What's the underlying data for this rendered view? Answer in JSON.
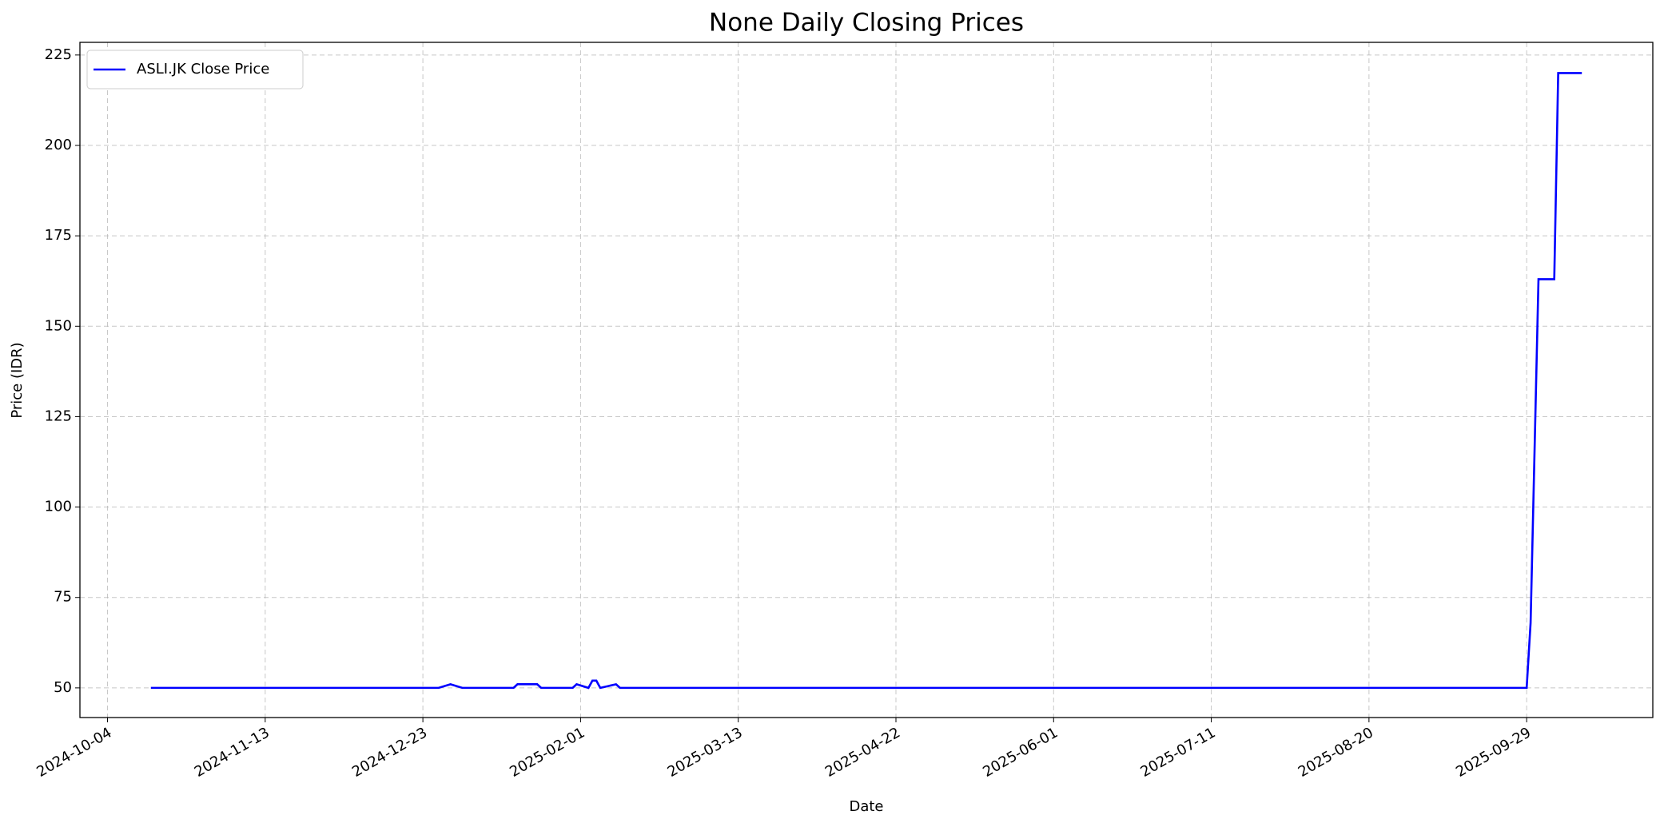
{
  "chart_data": {
    "type": "line",
    "title": "None Daily Closing Prices",
    "xlabel": "Date",
    "ylabel": "Price (IDR)",
    "x": [
      "2024-10-15",
      "2024-12-27",
      "2024-12-30",
      "2025-01-02",
      "2025-01-15",
      "2025-01-16",
      "2025-01-21",
      "2025-01-22",
      "2025-01-30",
      "2025-01-31",
      "2025-02-03",
      "2025-02-04",
      "2025-02-05",
      "2025-02-06",
      "2025-02-10",
      "2025-02-11",
      "2025-09-29",
      "2025-09-30",
      "2025-10-02",
      "2025-10-06",
      "2025-10-07",
      "2025-10-13"
    ],
    "series": [
      {
        "name": "ASLI.JK Close Price",
        "color": "#0000ff",
        "values": [
          50,
          50,
          51,
          50,
          50,
          51,
          51,
          50,
          50,
          51,
          50,
          52,
          52,
          50,
          51,
          50,
          50,
          68,
          163,
          163,
          220,
          220
        ]
      }
    ],
    "xlim": [
      "2024-09-27",
      "2025-10-31"
    ],
    "xticks": [
      "2024-10-04",
      "2024-11-13",
      "2024-12-23",
      "2025-02-01",
      "2025-03-13",
      "2025-04-22",
      "2025-06-01",
      "2025-07-11",
      "2025-08-20",
      "2025-09-29"
    ],
    "ylim": [
      41.8,
      228.5
    ],
    "yticks": [
      50,
      75,
      100,
      125,
      150,
      175,
      200,
      225
    ],
    "grid": true,
    "legend": "upper left"
  }
}
